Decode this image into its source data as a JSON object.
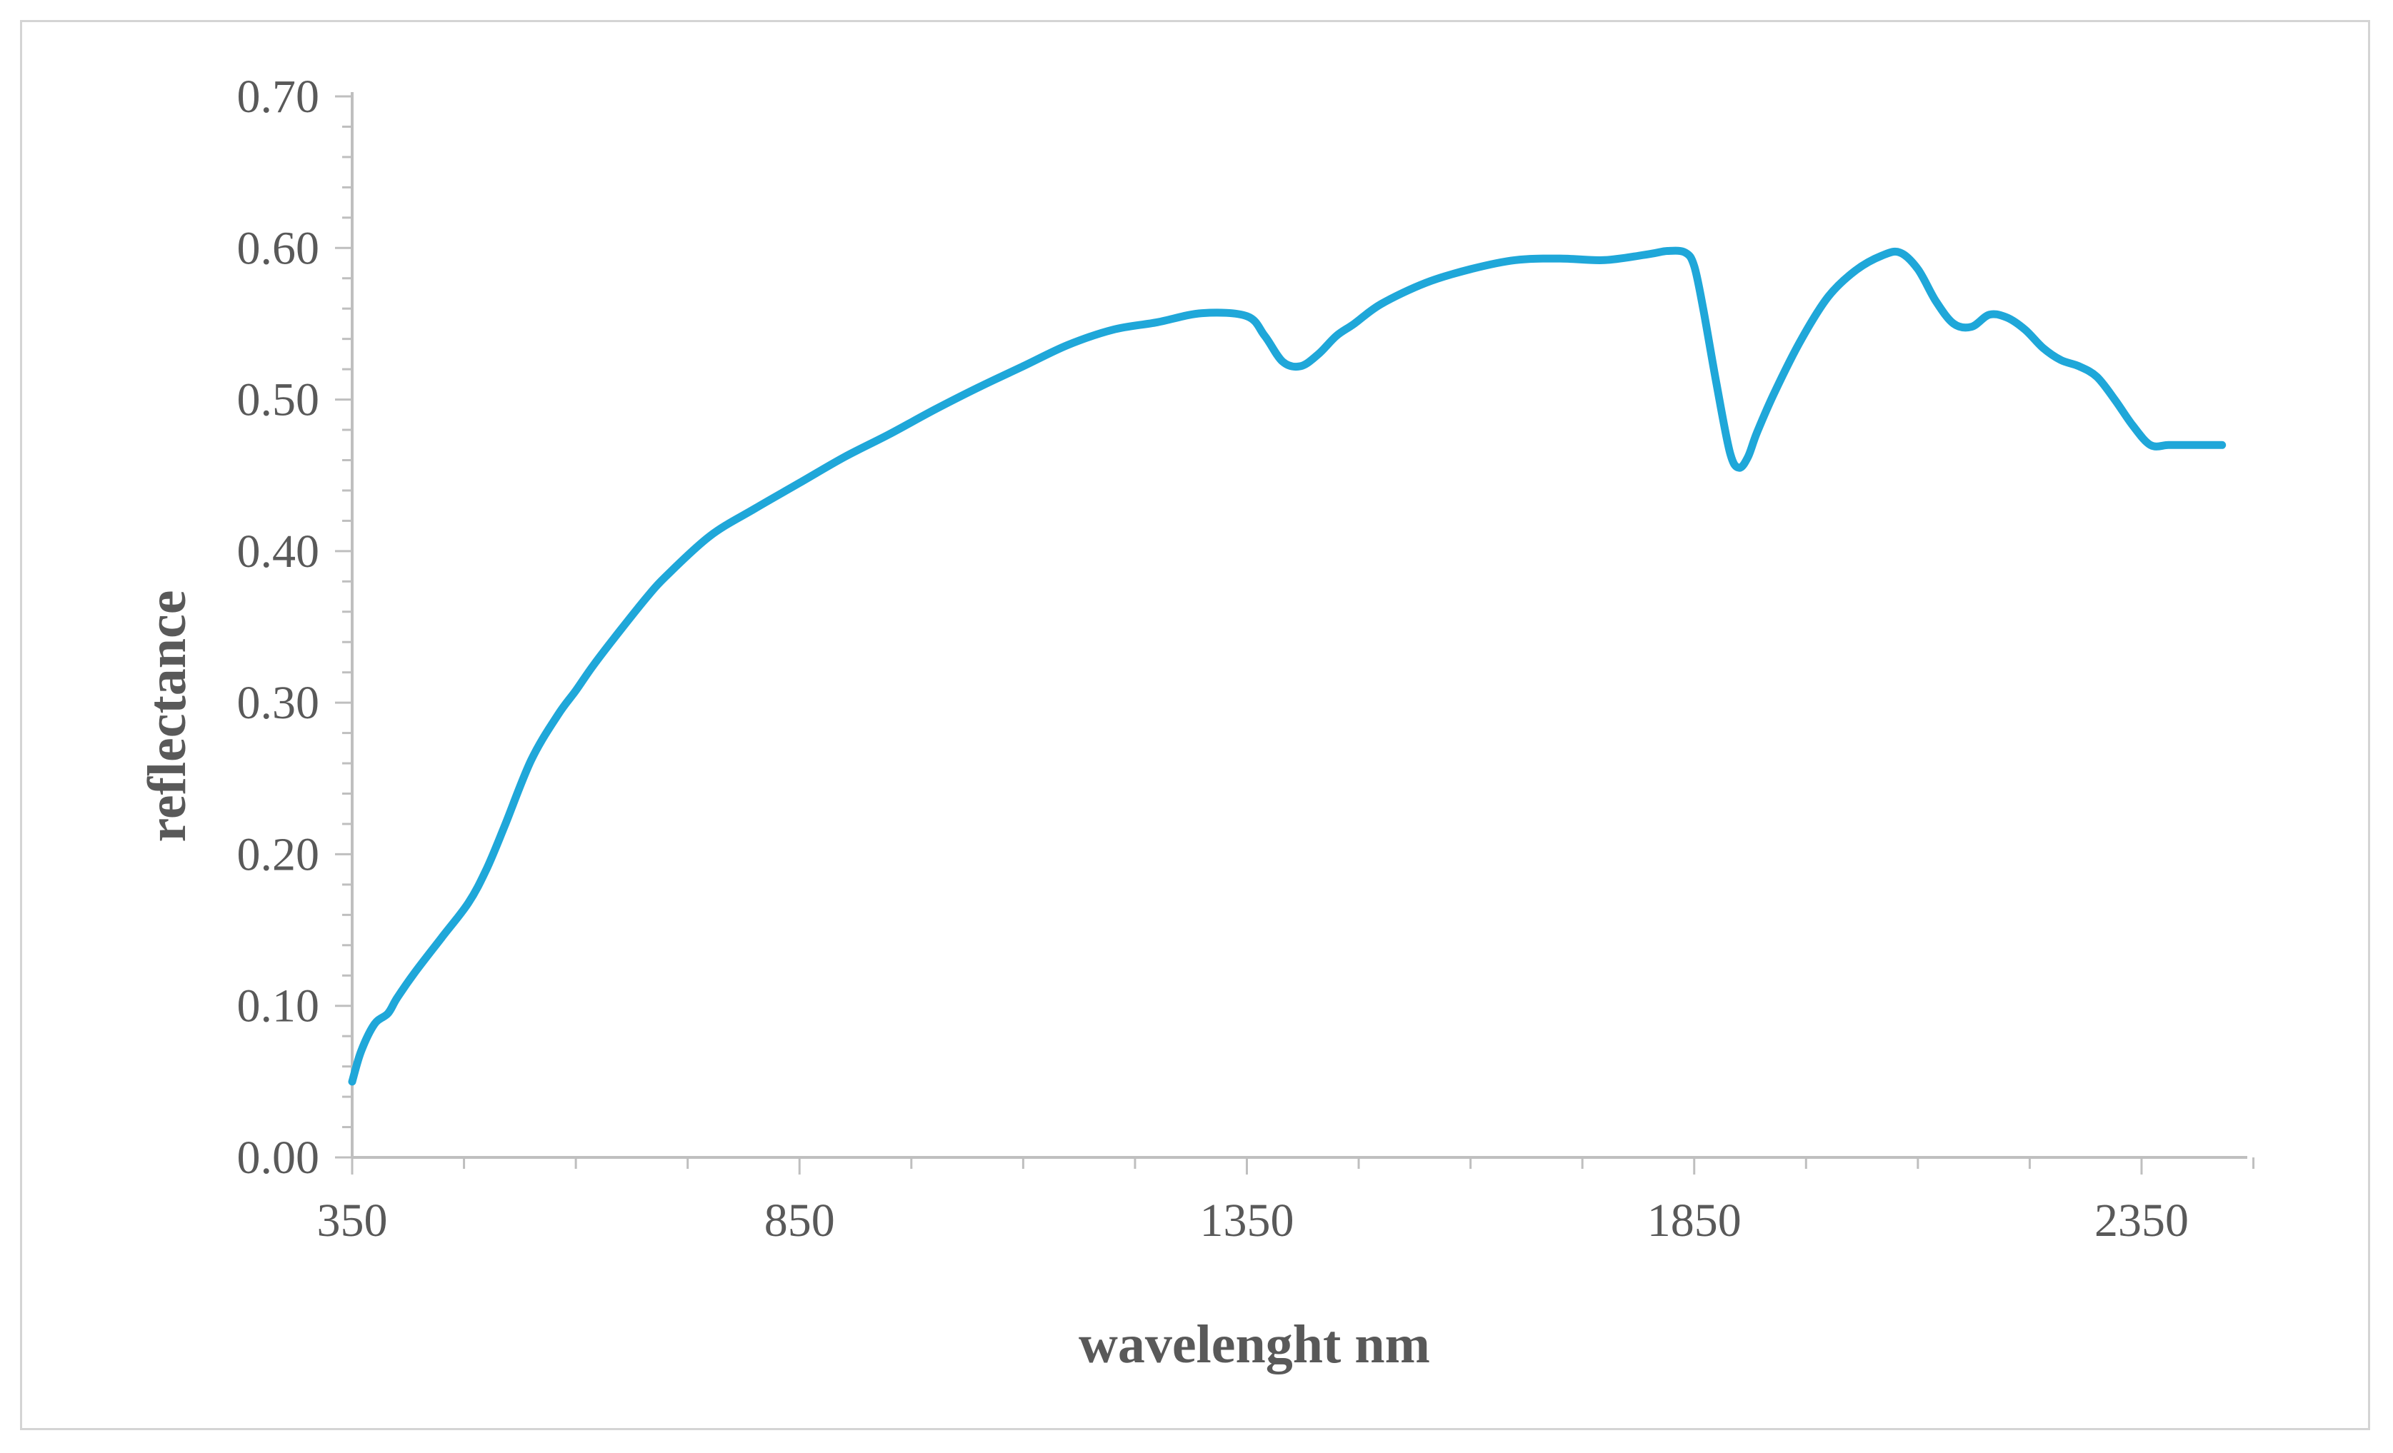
{
  "chart_data": {
    "type": "line",
    "title": "",
    "xlabel": "wavelenght nm",
    "ylabel": "reflectance",
    "xlim": [
      350,
      2500
    ],
    "ylim": [
      0.0,
      0.7
    ],
    "x_ticks": [
      350,
      850,
      1350,
      1850,
      2350
    ],
    "x_tick_labels": [
      "350",
      "850",
      "1350",
      "1850",
      "2350"
    ],
    "y_ticks": [
      0.0,
      0.1,
      0.2,
      0.3,
      0.4,
      0.5,
      0.6,
      0.7
    ],
    "y_tick_labels": [
      "0.00",
      "0.10",
      "0.20",
      "0.30",
      "0.40",
      "0.50",
      "0.60",
      "0.70"
    ],
    "grid": false,
    "legend": "none",
    "line_color": "#1fa7d9",
    "series": [
      {
        "x": [
          350,
          360,
          375,
          390,
          400,
          420,
          450,
          480,
          500,
          520,
          550,
          580,
          600,
          620,
          650,
          680,
          700,
          750,
          800,
          850,
          900,
          950,
          1000,
          1050,
          1100,
          1150,
          1200,
          1250,
          1300,
          1350,
          1370,
          1390,
          1410,
          1430,
          1450,
          1470,
          1500,
          1550,
          1600,
          1650,
          1700,
          1750,
          1800,
          1820,
          1840,
          1850,
          1860,
          1875,
          1890,
          1900,
          1910,
          1920,
          1940,
          1970,
          2000,
          2030,
          2060,
          2080,
          2100,
          2120,
          2140,
          2160,
          2180,
          2200,
          2220,
          2240,
          2260,
          2280,
          2300,
          2320,
          2340,
          2360,
          2380,
          2400,
          2420,
          2440
        ],
        "y": [
          0.05,
          0.07,
          0.088,
          0.095,
          0.105,
          0.122,
          0.145,
          0.168,
          0.19,
          0.218,
          0.262,
          0.292,
          0.308,
          0.325,
          0.348,
          0.37,
          0.383,
          0.41,
          0.428,
          0.445,
          0.462,
          0.477,
          0.493,
          0.508,
          0.522,
          0.536,
          0.546,
          0.551,
          0.557,
          0.555,
          0.542,
          0.525,
          0.522,
          0.53,
          0.542,
          0.55,
          0.563,
          0.577,
          0.586,
          0.592,
          0.593,
          0.592,
          0.596,
          0.598,
          0.597,
          0.588,
          0.56,
          0.51,
          0.465,
          0.455,
          0.462,
          0.478,
          0.505,
          0.54,
          0.568,
          0.585,
          0.595,
          0.597,
          0.586,
          0.565,
          0.55,
          0.548,
          0.556,
          0.554,
          0.546,
          0.534,
          0.526,
          0.522,
          0.515,
          0.5,
          0.483,
          0.47,
          0.47,
          0.47,
          0.47,
          0.47
        ]
      }
    ]
  }
}
